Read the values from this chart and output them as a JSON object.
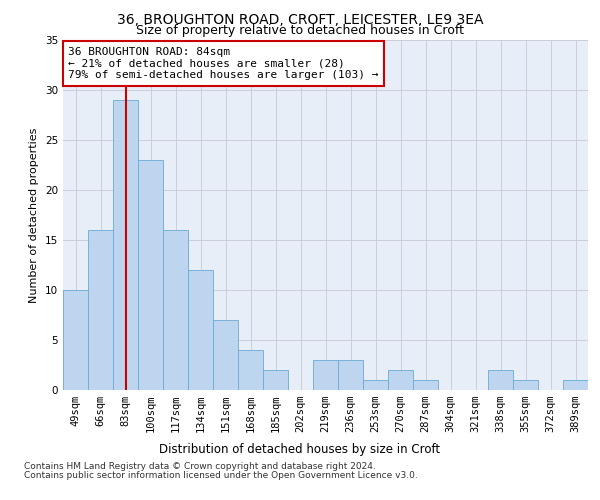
{
  "title1": "36, BROUGHTON ROAD, CROFT, LEICESTER, LE9 3EA",
  "title2": "Size of property relative to detached houses in Croft",
  "xlabel": "Distribution of detached houses by size in Croft",
  "ylabel": "Number of detached properties",
  "bar_labels": [
    "49sqm",
    "66sqm",
    "83sqm",
    "100sqm",
    "117sqm",
    "134sqm",
    "151sqm",
    "168sqm",
    "185sqm",
    "202sqm",
    "219sqm",
    "236sqm",
    "253sqm",
    "270sqm",
    "287sqm",
    "304sqm",
    "321sqm",
    "338sqm",
    "355sqm",
    "372sqm",
    "389sqm"
  ],
  "bar_values": [
    10,
    16,
    29,
    23,
    16,
    12,
    7,
    4,
    2,
    0,
    3,
    3,
    1,
    2,
    1,
    0,
    0,
    2,
    1,
    0,
    1
  ],
  "bar_color": "#bdd5ee",
  "bar_edge_color": "#6aaad4",
  "vline_x": 2,
  "vline_color": "#cc0000",
  "annotation_text": "36 BROUGHTON ROAD: 84sqm\n← 21% of detached houses are smaller (28)\n79% of semi-detached houses are larger (103) →",
  "annotation_box_color": "#ffffff",
  "annotation_box_edge": "#cc0000",
  "ylim": [
    0,
    35
  ],
  "yticks": [
    0,
    5,
    10,
    15,
    20,
    25,
    30,
    35
  ],
  "footer1": "Contains HM Land Registry data © Crown copyright and database right 2024.",
  "footer2": "Contains public sector information licensed under the Open Government Licence v3.0.",
  "background_color": "#e8eef8",
  "title1_fontsize": 10,
  "title2_fontsize": 9,
  "xlabel_fontsize": 8.5,
  "ylabel_fontsize": 8,
  "tick_fontsize": 7.5,
  "annotation_fontsize": 8,
  "footer_fontsize": 6.5
}
